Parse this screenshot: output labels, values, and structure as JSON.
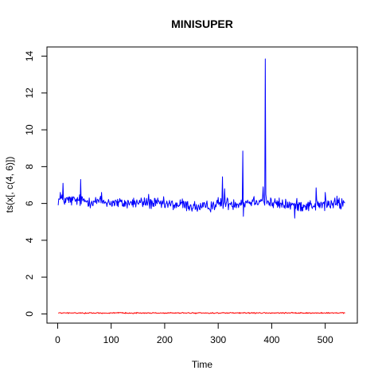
{
  "chart_data": {
    "type": "line",
    "title": "MINISUPER",
    "xlabel": "Time",
    "ylabel": "ts(x[, c(4, 6)])",
    "xlim": [
      -20,
      560
    ],
    "ylim": [
      -0.5,
      14.5
    ],
    "xticks": [
      0,
      100,
      200,
      300,
      400,
      500
    ],
    "yticks": [
      0,
      2,
      4,
      6,
      8,
      10,
      12,
      14
    ],
    "n_points": 537,
    "grid": false,
    "legend": "none",
    "series": [
      {
        "color": "#0000FF",
        "baseline": [
          [
            1,
            6.2
          ],
          [
            40,
            6.15
          ],
          [
            80,
            6.1
          ],
          [
            120,
            6.0
          ],
          [
            160,
            6.05
          ],
          [
            200,
            5.95
          ],
          [
            240,
            5.9
          ],
          [
            270,
            5.75
          ],
          [
            300,
            6.0
          ],
          [
            330,
            6.0
          ],
          [
            360,
            6.1
          ],
          [
            380,
            6.2
          ],
          [
            400,
            6.0
          ],
          [
            440,
            5.9
          ],
          [
            480,
            5.9
          ],
          [
            537,
            6.0
          ]
        ],
        "noise": 0.28,
        "spikes": [
          [
            5,
            6.6
          ],
          [
            10,
            7.1
          ],
          [
            43,
            7.3
          ],
          [
            82,
            6.6
          ],
          [
            140,
            6.2
          ],
          [
            170,
            6.5
          ],
          [
            233,
            6.25
          ],
          [
            278,
            6.0
          ],
          [
            308,
            7.45
          ],
          [
            312,
            6.8
          ],
          [
            346,
            8.85
          ],
          [
            347,
            5.3
          ],
          [
            384,
            6.9
          ],
          [
            388,
            13.85
          ],
          [
            389,
            6.5
          ],
          [
            443,
            5.2
          ],
          [
            483,
            6.85
          ],
          [
            500,
            6.6
          ],
          [
            522,
            6.4
          ]
        ]
      },
      {
        "color": "#FF0000",
        "baseline": [
          [
            1,
            0.05
          ],
          [
            537,
            0.05
          ]
        ],
        "noise": 0.025,
        "spikes": []
      }
    ]
  }
}
